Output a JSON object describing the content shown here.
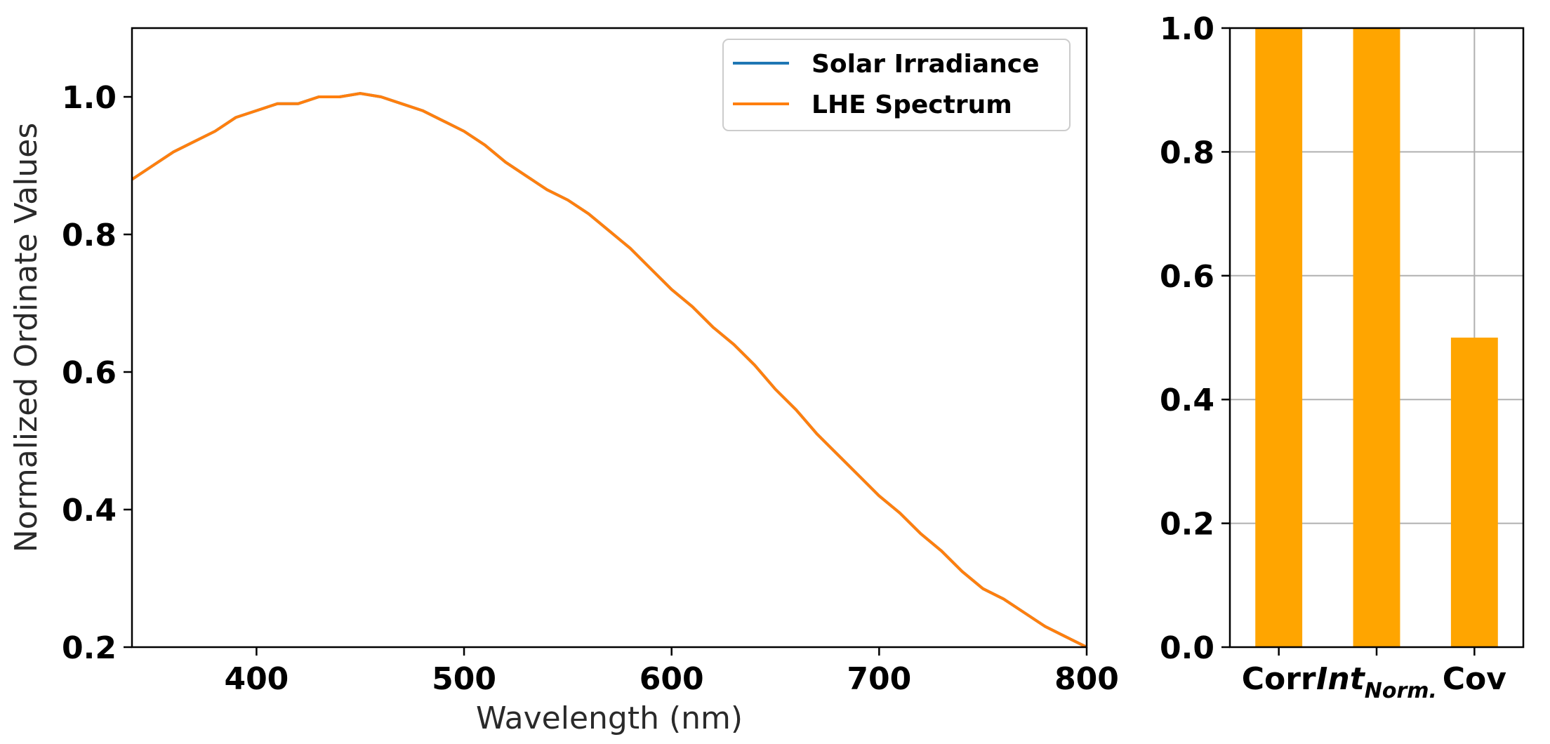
{
  "chart_data": [
    {
      "type": "line",
      "title": "",
      "xlabel": "Wavelength (nm)",
      "ylabel": "Normalized Ordinate Values",
      "xlim": [
        340,
        800
      ],
      "ylim": [
        0.2,
        1.1
      ],
      "xticks": [
        "400",
        "500",
        "600",
        "700",
        "800"
      ],
      "yticks": [
        "0.2",
        "0.4",
        "0.6",
        "0.8",
        "1.0"
      ],
      "grid": false,
      "legend_position": "top-right",
      "series": [
        {
          "name": "Solar Irradiance",
          "color": "#1f77b4",
          "x": [
            340,
            350,
            360,
            370,
            380,
            390,
            400,
            410,
            420,
            430,
            440,
            450,
            460,
            470,
            480,
            490,
            500,
            510,
            520,
            530,
            540,
            550,
            560,
            570,
            580,
            590,
            600,
            610,
            620,
            630,
            640,
            650,
            660,
            670,
            680,
            690,
            700,
            710,
            720,
            730,
            740,
            750,
            760,
            770,
            780,
            790,
            800
          ],
          "y": [
            0.88,
            0.9,
            0.92,
            0.935,
            0.95,
            0.97,
            0.98,
            0.99,
            0.99,
            1.0,
            1.0,
            1.005,
            1.0,
            0.99,
            0.98,
            0.965,
            0.95,
            0.93,
            0.905,
            0.885,
            0.865,
            0.85,
            0.83,
            0.805,
            0.78,
            0.75,
            0.72,
            0.695,
            0.665,
            0.64,
            0.61,
            0.575,
            0.545,
            0.51,
            0.48,
            0.45,
            0.42,
            0.395,
            0.365,
            0.34,
            0.31,
            0.285,
            0.27,
            0.25,
            0.23,
            0.215,
            0.2
          ]
        },
        {
          "name": "LHE Spectrum",
          "color": "#ff7f0e",
          "x": [
            340,
            350,
            360,
            370,
            380,
            390,
            400,
            410,
            420,
            430,
            440,
            450,
            460,
            470,
            480,
            490,
            500,
            510,
            520,
            530,
            540,
            550,
            560,
            570,
            580,
            590,
            600,
            610,
            620,
            630,
            640,
            650,
            660,
            670,
            680,
            690,
            700,
            710,
            720,
            730,
            740,
            750,
            760,
            770,
            780,
            790,
            800
          ],
          "y": [
            0.88,
            0.9,
            0.92,
            0.935,
            0.95,
            0.97,
            0.98,
            0.99,
            0.99,
            1.0,
            1.0,
            1.005,
            1.0,
            0.99,
            0.98,
            0.965,
            0.95,
            0.93,
            0.905,
            0.885,
            0.865,
            0.85,
            0.83,
            0.805,
            0.78,
            0.75,
            0.72,
            0.695,
            0.665,
            0.64,
            0.61,
            0.575,
            0.545,
            0.51,
            0.48,
            0.45,
            0.42,
            0.395,
            0.365,
            0.34,
            0.31,
            0.285,
            0.27,
            0.25,
            0.23,
            0.215,
            0.2
          ]
        }
      ]
    },
    {
      "type": "bar",
      "title": "",
      "xlabel": "",
      "ylabel": "",
      "ylim": [
        0.0,
        1.0
      ],
      "yticks": [
        "0.0",
        "0.2",
        "0.4",
        "0.6",
        "0.8",
        "1.0"
      ],
      "grid": true,
      "bar_color": "#ffa500",
      "categories": [
        {
          "label": "Corr",
          "sub": ""
        },
        {
          "label": "Int",
          "sub": "Norm."
        },
        {
          "label": "Cov",
          "sub": ""
        }
      ],
      "values": [
        1.0,
        1.0,
        0.5
      ]
    }
  ]
}
